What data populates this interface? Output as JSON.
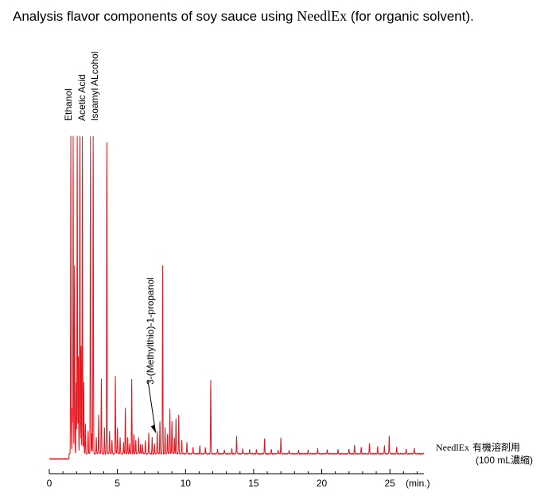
{
  "title": {
    "prefix": "Analysis flavor components of soy sauce using",
    "product": "NeedlEx",
    "suffix": "(for organic solvent)."
  },
  "legend": {
    "product": "NeedlEx",
    "line1_rest": "有機溶剤用",
    "line2": "(100 mL濃縮)",
    "position": "bottom-right"
  },
  "colors": {
    "trace": "#e8141c",
    "axis": "#000000",
    "text": "#000000"
  },
  "chart_data": {
    "type": "line",
    "title": "Analysis flavor components of soy sauce using NeedlEx (for organic solvent).",
    "xlabel": "(min.)",
    "ylabel": "",
    "xlim": [
      0,
      27.5
    ],
    "ylim": [
      0,
      100
    ],
    "x_ticks": [
      0,
      5,
      10,
      15,
      20,
      25
    ],
    "x_tick_labels": [
      "0",
      "5",
      "10",
      "15",
      "20",
      "25"
    ],
    "grid": false,
    "baseline_start": 0.4,
    "baseline_end": 2.0,
    "series": [
      {
        "name": "NeedlEx 有機溶剤用 (100 mL濃縮)",
        "peaks": [
          {
            "x": 1.58,
            "y": 98
          },
          {
            "x": 1.68,
            "y": 14
          },
          {
            "x": 1.75,
            "y": 98
          },
          {
            "x": 1.85,
            "y": 58
          },
          {
            "x": 1.97,
            "y": 22
          },
          {
            "x": 2.05,
            "y": 98
          },
          {
            "x": 2.13,
            "y": 30
          },
          {
            "x": 2.24,
            "y": 98
          },
          {
            "x": 2.33,
            "y": 33
          },
          {
            "x": 2.43,
            "y": 98
          },
          {
            "x": 2.53,
            "y": 22
          },
          {
            "x": 2.65,
            "y": 9
          },
          {
            "x": 2.85,
            "y": 7
          },
          {
            "x": 3.02,
            "y": 98
          },
          {
            "x": 3.12,
            "y": 6
          },
          {
            "x": 3.22,
            "y": 98
          },
          {
            "x": 3.45,
            "y": 5
          },
          {
            "x": 3.62,
            "y": 12
          },
          {
            "x": 3.82,
            "y": 23
          },
          {
            "x": 4.05,
            "y": 8
          },
          {
            "x": 4.22,
            "y": 96
          },
          {
            "x": 4.42,
            "y": 7
          },
          {
            "x": 4.6,
            "y": 4
          },
          {
            "x": 4.85,
            "y": 24
          },
          {
            "x": 5.0,
            "y": 8
          },
          {
            "x": 5.2,
            "y": 5
          },
          {
            "x": 5.45,
            "y": 3.5
          },
          {
            "x": 5.58,
            "y": 14
          },
          {
            "x": 5.75,
            "y": 5
          },
          {
            "x": 5.9,
            "y": 3
          },
          {
            "x": 6.05,
            "y": 23
          },
          {
            "x": 6.2,
            "y": 6
          },
          {
            "x": 6.35,
            "y": 4
          },
          {
            "x": 6.55,
            "y": 5
          },
          {
            "x": 6.7,
            "y": 3
          },
          {
            "x": 6.85,
            "y": 3
          },
          {
            "x": 7.05,
            "y": 4
          },
          {
            "x": 7.3,
            "y": 6.5
          },
          {
            "x": 7.55,
            "y": 5
          },
          {
            "x": 7.72,
            "y": 3
          },
          {
            "x": 7.92,
            "y": 7
          },
          {
            "x": 8.12,
            "y": 10
          },
          {
            "x": 8.32,
            "y": 58
          },
          {
            "x": 8.5,
            "y": 8
          },
          {
            "x": 8.68,
            "y": 6
          },
          {
            "x": 8.85,
            "y": 14
          },
          {
            "x": 9.0,
            "y": 10
          },
          {
            "x": 9.18,
            "y": 5
          },
          {
            "x": 9.3,
            "y": 11
          },
          {
            "x": 9.5,
            "y": 12
          },
          {
            "x": 9.72,
            "y": 4
          },
          {
            "x": 10.1,
            "y": 3.5
          },
          {
            "x": 10.55,
            "y": 2
          },
          {
            "x": 11.05,
            "y": 2.5
          },
          {
            "x": 11.45,
            "y": 2
          },
          {
            "x": 11.85,
            "y": 22.5
          },
          {
            "x": 12.35,
            "y": 1.5
          },
          {
            "x": 12.85,
            "y": 1.3
          },
          {
            "x": 13.4,
            "y": 1.5
          },
          {
            "x": 13.75,
            "y": 5.5
          },
          {
            "x": 14.2,
            "y": 1.6
          },
          {
            "x": 14.7,
            "y": 1.3
          },
          {
            "x": 15.2,
            "y": 1.2
          },
          {
            "x": 15.8,
            "y": 4.5
          },
          {
            "x": 16.3,
            "y": 1.3
          },
          {
            "x": 16.8,
            "y": 1.2
          },
          {
            "x": 17.0,
            "y": 5
          },
          {
            "x": 17.6,
            "y": 1.2
          },
          {
            "x": 18.3,
            "y": 1.1
          },
          {
            "x": 19.0,
            "y": 1.2
          },
          {
            "x": 19.7,
            "y": 1.6
          },
          {
            "x": 20.4,
            "y": 1.1
          },
          {
            "x": 21.2,
            "y": 1.2
          },
          {
            "x": 22.0,
            "y": 1.5
          },
          {
            "x": 22.4,
            "y": 2.5
          },
          {
            "x": 22.9,
            "y": 2
          },
          {
            "x": 23.5,
            "y": 3
          },
          {
            "x": 24.1,
            "y": 2
          },
          {
            "x": 24.6,
            "y": 2.5
          },
          {
            "x": 24.95,
            "y": 5.5
          },
          {
            "x": 25.5,
            "y": 2
          },
          {
            "x": 26.2,
            "y": 1.5
          },
          {
            "x": 26.8,
            "y": 1.8
          }
        ]
      }
    ],
    "annotations": [
      {
        "text": "Ethanol",
        "x": 1.6,
        "orientation": "vertical"
      },
      {
        "text": "Acetic Acid",
        "x": 2.45,
        "orientation": "vertical"
      },
      {
        "text": "Isoamyl ALcohol",
        "x": 3.2,
        "orientation": "vertical"
      },
      {
        "text": "3-(Methylthio)-1-propanol",
        "x": 7.8,
        "orientation": "vertical",
        "arrow_to_x": 7.92
      }
    ]
  }
}
